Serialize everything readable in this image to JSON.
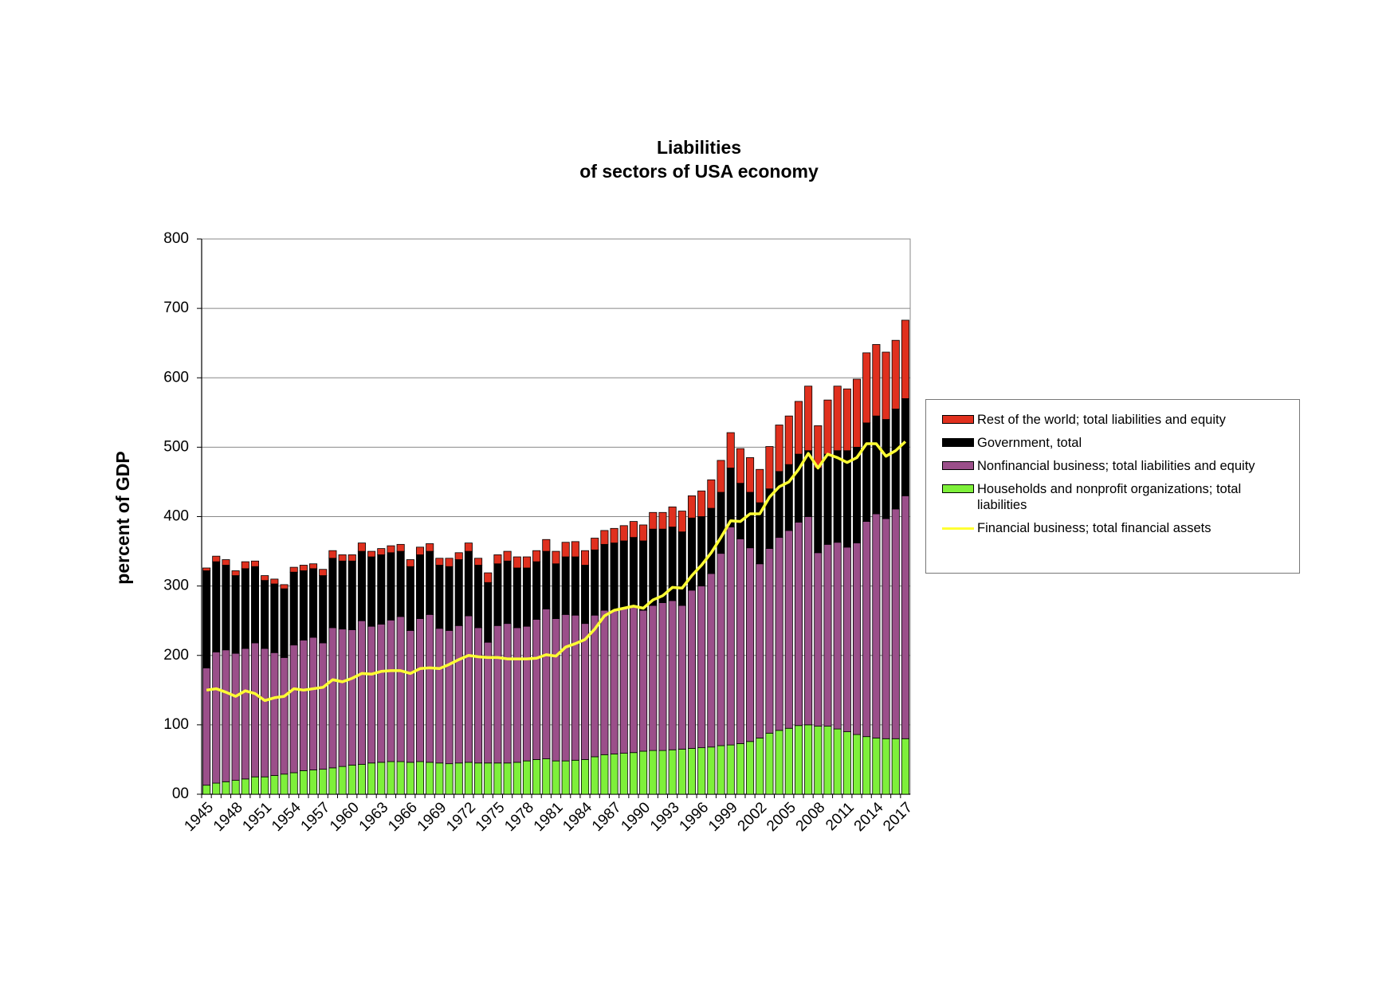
{
  "chart_data": {
    "type": "bar",
    "stacked": true,
    "title": "Liabilities",
    "subtitle": "of sectors of USA economy",
    "y_label": "percent of GDP",
    "categories": [
      "1945",
      null,
      null,
      "1948",
      null,
      null,
      "1951",
      null,
      null,
      "1954",
      null,
      null,
      "1957",
      null,
      null,
      "1960",
      null,
      null,
      "1963",
      null,
      null,
      "1966",
      null,
      null,
      "1969",
      null,
      null,
      "1972",
      null,
      null,
      "1975",
      null,
      null,
      "1978",
      null,
      null,
      "1981",
      null,
      null,
      "1984",
      null,
      null,
      "1987",
      null,
      null,
      "1990",
      null,
      null,
      "1993",
      null,
      null,
      "1996",
      null,
      null,
      "1999",
      null,
      null,
      "2002",
      null,
      null,
      "2005",
      null,
      null,
      "2008",
      null,
      null,
      "2011",
      null,
      null,
      "2014",
      null,
      null,
      "2017"
    ],
    "ylim": [
      0,
      800
    ],
    "yticks": [
      {
        "value": 0,
        "label": "00"
      },
      100,
      200,
      300,
      400,
      500,
      600,
      700,
      800
    ],
    "grid": true,
    "legend": "right",
    "series": [
      {
        "name": "Rest of the world; total liabilities and equity",
        "color": "#e0301e",
        "type": "bar",
        "values": [
          4,
          8,
          8,
          7,
          10,
          8,
          7,
          7,
          6,
          7,
          8,
          7,
          9,
          11,
          9,
          9,
          12,
          8,
          9,
          10,
          10,
          10,
          11,
          11,
          10,
          12,
          10,
          12,
          10,
          14,
          13,
          14,
          16,
          16,
          16,
          17,
          18,
          21,
          22,
          21,
          17,
          20,
          21,
          22,
          23,
          23,
          24,
          24,
          29,
          30,
          32,
          37,
          41,
          46,
          51,
          50,
          50,
          48,
          61,
          67,
          70,
          76,
          93,
          61,
          78,
          93,
          89,
          98,
          101,
          103,
          97,
          99,
          113
        ]
      },
      {
        "name": "Government, total",
        "color": "#000000",
        "type": "bar",
        "values": [
          140,
          130,
          122,
          112,
          115,
          110,
          98,
          99,
          99,
          105,
          100,
          99,
          97,
          100,
          98,
          99,
          100,
          100,
          100,
          97,
          94,
          92,
          92,
          91,
          91,
          92,
          95,
          93,
          90,
          86,
          89,
          90,
          86,
          84,
          83,
          83,
          79,
          83,
          84,
          84,
          94,
          95,
          97,
          97,
          100,
          100,
          110,
          106,
          106,
          106,
          104,
          100,
          94,
          88,
          85,
          80,
          80,
          88,
          86,
          95,
          95,
          98,
          95,
          122,
          130,
          132,
          139,
          138,
          142,
          141,
          143,
          144,
          140
        ]
      },
      {
        "name": "Nonfinancial business; total liabilities and equity",
        "color": "#9b4f8a",
        "type": "bar",
        "values": [
          169,
          189,
          190,
          183,
          188,
          193,
          185,
          177,
          168,
          184,
          188,
          191,
          182,
          202,
          198,
          195,
          207,
          197,
          199,
          204,
          209,
          190,
          206,
          213,
          194,
          192,
          198,
          211,
          195,
          174,
          198,
          201,
          194,
          194,
          202,
          216,
          205,
          211,
          209,
          196,
          204,
          208,
          207,
          209,
          210,
          203,
          209,
          213,
          215,
          207,
          228,
          233,
          250,
          277,
          314,
          295,
          279,
          251,
          266,
          278,
          285,
          293,
          300,
          250,
          262,
          269,
          266,
          276,
          310,
          323,
          317,
          331,
          350
        ]
      },
      {
        "name": "Households and nonprofit organizations; total liabilities",
        "color": "#7ef03a",
        "type": "bar",
        "values": [
          13,
          16,
          18,
          20,
          22,
          25,
          25,
          27,
          29,
          31,
          34,
          35,
          36,
          38,
          40,
          42,
          43,
          45,
          46,
          47,
          47,
          46,
          47,
          46,
          45,
          44,
          45,
          46,
          45,
          45,
          45,
          45,
          46,
          48,
          50,
          51,
          48,
          48,
          49,
          50,
          54,
          57,
          58,
          59,
          60,
          62,
          63,
          63,
          64,
          65,
          66,
          67,
          68,
          70,
          71,
          73,
          76,
          81,
          88,
          92,
          95,
          99,
          100,
          98,
          98,
          94,
          90,
          86,
          83,
          81,
          80,
          80,
          80
        ]
      },
      {
        "name": "Financial business; total financial assets",
        "color": "#ffff33",
        "type": "line",
        "values": [
          150,
          152,
          147,
          141,
          149,
          145,
          135,
          139,
          141,
          152,
          150,
          152,
          154,
          165,
          162,
          167,
          174,
          173,
          177,
          178,
          178,
          174,
          181,
          182,
          181,
          187,
          194,
          200,
          198,
          197,
          197,
          195,
          195,
          195,
          196,
          201,
          199,
          212,
          217,
          223,
          238,
          257,
          265,
          268,
          271,
          268,
          280,
          286,
          298,
          297,
          315,
          330,
          348,
          370,
          394,
          393,
          404,
          404,
          428,
          443,
          450,
          468,
          491,
          470,
          490,
          485,
          478,
          485,
          505,
          505,
          487,
          495,
          508
        ]
      }
    ]
  }
}
